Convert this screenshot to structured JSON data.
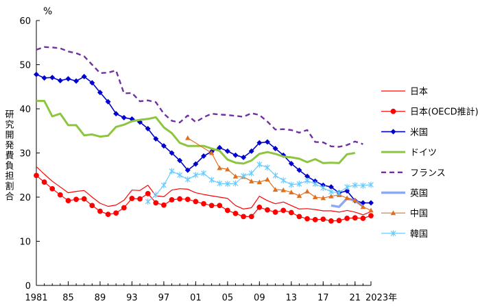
{
  "chart_data": {
    "type": "line",
    "unit": "%",
    "ylabel": "研究開発費負担割合",
    "ylim": [
      0,
      60
    ],
    "yticks": [
      0,
      10,
      20,
      30,
      40,
      50,
      60
    ],
    "xlim": [
      1981,
      2023
    ],
    "xticks": [
      {
        "year": 1981,
        "label": "1981"
      },
      {
        "year": 1985,
        "label": "85"
      },
      {
        "year": 1989,
        "label": "89"
      },
      {
        "year": 1993,
        "label": "93"
      },
      {
        "year": 1997,
        "label": "97"
      },
      {
        "year": 2001,
        "label": "01"
      },
      {
        "year": 2005,
        "label": "05"
      },
      {
        "year": 2009,
        "label": "09"
      },
      {
        "year": 2013,
        "label": "13"
      },
      {
        "year": 2017,
        "label": "17"
      },
      {
        "year": 2021,
        "label": "21"
      },
      {
        "year": 2023,
        "label": "2023年"
      }
    ],
    "grid": false,
    "legend_position": "right",
    "series": [
      {
        "name": "日本",
        "color": "#ff0000",
        "width": 1.2,
        "dash": "",
        "marker": "none",
        "points": [
          [
            1981,
            26.9
          ],
          [
            1982,
            25.2
          ],
          [
            1983,
            23.6
          ],
          [
            1984,
            22.3
          ],
          [
            1985,
            21.0
          ],
          [
            1986,
            21.3
          ],
          [
            1987,
            21.5
          ],
          [
            1988,
            20.0
          ],
          [
            1989,
            18.6
          ],
          [
            1990,
            17.9
          ],
          [
            1991,
            18.2
          ],
          [
            1992,
            19.3
          ],
          [
            1993,
            21.6
          ],
          [
            1994,
            21.5
          ],
          [
            1995,
            22.7
          ],
          [
            1996,
            20.3
          ],
          [
            1997,
            20.1
          ],
          [
            1998,
            21.6
          ],
          [
            1999,
            21.9
          ],
          [
            2000,
            21.8
          ],
          [
            2001,
            21.0
          ],
          [
            2002,
            20.6
          ],
          [
            2003,
            20.3
          ],
          [
            2004,
            20.0
          ],
          [
            2005,
            19.7
          ],
          [
            2006,
            18.1
          ],
          [
            2007,
            17.3
          ],
          [
            2008,
            17.6
          ],
          [
            2009,
            20.2
          ],
          [
            2010,
            19.2
          ],
          [
            2011,
            18.5
          ],
          [
            2012,
            18.9
          ],
          [
            2013,
            18.1
          ],
          [
            2014,
            17.3
          ],
          [
            2015,
            17.4
          ],
          [
            2016,
            17.2
          ],
          [
            2017,
            16.9
          ],
          [
            2018,
            16.9
          ],
          [
            2019,
            16.6
          ],
          [
            2020,
            17.0
          ],
          [
            2021,
            16.6
          ],
          [
            2022,
            16.0
          ],
          [
            2023,
            16.7
          ]
        ]
      },
      {
        "name": "日本(OECD推計)",
        "color": "#ff0000",
        "width": 1.2,
        "dash": "",
        "marker": "circle",
        "points": [
          [
            1981,
            24.9
          ],
          [
            1982,
            23.4
          ],
          [
            1983,
            21.9
          ],
          [
            1984,
            20.5
          ],
          [
            1985,
            19.2
          ],
          [
            1986,
            19.5
          ],
          [
            1987,
            19.6
          ],
          [
            1988,
            18.1
          ],
          [
            1989,
            16.8
          ],
          [
            1990,
            16.1
          ],
          [
            1991,
            16.4
          ],
          [
            1992,
            17.6
          ],
          [
            1993,
            19.7
          ],
          [
            1994,
            19.6
          ],
          [
            1995,
            20.8
          ],
          [
            1996,
            18.7
          ],
          [
            1997,
            18.2
          ],
          [
            1998,
            19.4
          ],
          [
            1999,
            19.6
          ],
          [
            2000,
            19.5
          ],
          [
            2001,
            19.0
          ],
          [
            2002,
            18.5
          ],
          [
            2003,
            18.1
          ],
          [
            2004,
            18.1
          ],
          [
            2005,
            17.0
          ],
          [
            2006,
            16.3
          ],
          [
            2007,
            15.6
          ],
          [
            2008,
            15.6
          ],
          [
            2009,
            17.7
          ],
          [
            2010,
            17.1
          ],
          [
            2011,
            16.6
          ],
          [
            2012,
            17.0
          ],
          [
            2013,
            16.5
          ],
          [
            2014,
            15.6
          ],
          [
            2015,
            15.1
          ],
          [
            2016,
            14.9
          ],
          [
            2017,
            15.0
          ],
          [
            2018,
            14.6
          ],
          [
            2019,
            14.7
          ],
          [
            2020,
            15.2
          ],
          [
            2021,
            15.3
          ],
          [
            2022,
            15.2
          ],
          [
            2023,
            15.8
          ]
        ]
      },
      {
        "name": "米国",
        "color": "#0000cc",
        "width": 1.6,
        "dash": "",
        "marker": "diamond",
        "points": [
          [
            1981,
            47.8
          ],
          [
            1982,
            47.0
          ],
          [
            1983,
            47.1
          ],
          [
            1984,
            46.4
          ],
          [
            1985,
            46.8
          ],
          [
            1986,
            46.3
          ],
          [
            1987,
            47.3
          ],
          [
            1988,
            45.9
          ],
          [
            1989,
            43.7
          ],
          [
            1990,
            41.6
          ],
          [
            1991,
            38.9
          ],
          [
            1992,
            38.0
          ],
          [
            1993,
            37.7
          ],
          [
            1994,
            37.0
          ],
          [
            1995,
            35.5
          ],
          [
            1996,
            33.2
          ],
          [
            1997,
            31.6
          ],
          [
            1998,
            30.0
          ],
          [
            1999,
            28.3
          ],
          [
            2000,
            26.1
          ],
          [
            2001,
            27.5
          ],
          [
            2002,
            29.3
          ],
          [
            2003,
            30.3
          ],
          [
            2004,
            31.2
          ],
          [
            2005,
            30.4
          ],
          [
            2006,
            29.5
          ],
          [
            2007,
            29.0
          ],
          [
            2008,
            30.4
          ],
          [
            2009,
            32.3
          ],
          [
            2010,
            32.5
          ],
          [
            2011,
            31.0
          ],
          [
            2012,
            29.5
          ],
          [
            2013,
            27.6
          ],
          [
            2014,
            26.1
          ],
          [
            2015,
            24.7
          ],
          [
            2016,
            23.6
          ],
          [
            2017,
            22.7
          ],
          [
            2018,
            22.3
          ],
          [
            2019,
            21.0
          ],
          [
            2020,
            21.4
          ],
          [
            2021,
            19.2
          ],
          [
            2022,
            18.7
          ],
          [
            2023,
            18.7
          ]
        ]
      },
      {
        "name": "ドイツ",
        "color": "#8cc63f",
        "width": 3,
        "dash": "",
        "marker": "none",
        "points": [
          [
            1981,
            41.8
          ],
          [
            1982,
            41.8
          ],
          [
            1983,
            38.3
          ],
          [
            1984,
            38.9
          ],
          [
            1985,
            36.3
          ],
          [
            1986,
            36.3
          ],
          [
            1987,
            34.0
          ],
          [
            1988,
            34.2
          ],
          [
            1989,
            33.7
          ],
          [
            1990,
            33.9
          ],
          [
            1991,
            35.9
          ],
          [
            1992,
            36.4
          ],
          [
            1993,
            37.2
          ],
          [
            1994,
            37.5
          ],
          [
            1995,
            37.7
          ],
          [
            1996,
            38.1
          ],
          [
            1997,
            35.8
          ],
          [
            1998,
            34.5
          ],
          [
            1999,
            32.3
          ],
          [
            2000,
            31.6
          ],
          [
            2001,
            31.6
          ],
          [
            2002,
            31.6
          ],
          [
            2003,
            31.0
          ],
          [
            2004,
            30.5
          ],
          [
            2005,
            28.5
          ],
          [
            2006,
            27.8
          ],
          [
            2007,
            27.6
          ],
          [
            2008,
            28.3
          ],
          [
            2009,
            29.8
          ],
          [
            2010,
            30.2
          ],
          [
            2011,
            29.8
          ],
          [
            2012,
            29.2
          ],
          [
            2013,
            29.0
          ],
          [
            2014,
            28.7
          ],
          [
            2015,
            27.9
          ],
          [
            2016,
            28.6
          ],
          [
            2017,
            27.7
          ],
          [
            2018,
            27.8
          ],
          [
            2019,
            27.7
          ],
          [
            2020,
            29.7
          ],
          [
            2021,
            30.0
          ]
        ]
      },
      {
        "name": "フランス",
        "color": "#7030a0",
        "width": 2.4,
        "dash": "7 5",
        "marker": "none",
        "points": [
          [
            1981,
            53.4
          ],
          [
            1982,
            54.0
          ],
          [
            1983,
            53.9
          ],
          [
            1984,
            53.7
          ],
          [
            1985,
            53.0
          ],
          [
            1986,
            52.6
          ],
          [
            1987,
            51.9
          ],
          [
            1988,
            50.0
          ],
          [
            1989,
            48.1
          ],
          [
            1990,
            48.2
          ],
          [
            1991,
            48.7
          ],
          [
            1992,
            43.5
          ],
          [
            1993,
            43.6
          ],
          [
            1994,
            41.7
          ],
          [
            1995,
            41.9
          ],
          [
            1996,
            41.5
          ],
          [
            1997,
            38.9
          ],
          [
            1998,
            37.3
          ],
          [
            1999,
            36.9
          ],
          [
            2000,
            38.5
          ],
          [
            2001,
            37.0
          ],
          [
            2002,
            38.1
          ],
          [
            2003,
            38.9
          ],
          [
            2004,
            38.7
          ],
          [
            2005,
            38.6
          ],
          [
            2006,
            38.4
          ],
          [
            2007,
            38.2
          ],
          [
            2008,
            39.0
          ],
          [
            2009,
            38.6
          ],
          [
            2010,
            37.1
          ],
          [
            2011,
            35.3
          ],
          [
            2012,
            35.4
          ],
          [
            2013,
            35.2
          ],
          [
            2014,
            34.6
          ],
          [
            2015,
            35.2
          ],
          [
            2016,
            32.5
          ],
          [
            2017,
            32.4
          ],
          [
            2018,
            31.5
          ],
          [
            2019,
            31.4
          ],
          [
            2020,
            31.8
          ],
          [
            2021,
            32.6
          ],
          [
            2022,
            32.0
          ]
        ]
      },
      {
        "name": "英国",
        "color": "#8ea9f0",
        "width": 3.5,
        "dash": "",
        "marker": "none",
        "points": [
          [
            2018,
            18.1
          ],
          [
            2019,
            17.8
          ],
          [
            2020,
            19.7
          ],
          [
            2021,
            19.2
          ],
          [
            2022,
            17.9
          ]
        ]
      },
      {
        "name": "中国",
        "color": "#e07020",
        "width": 1.2,
        "dash": "",
        "marker": "triangle",
        "points": [
          [
            2000,
            33.4
          ],
          [
            2003,
            30.0
          ],
          [
            2004,
            26.6
          ],
          [
            2005,
            26.3
          ],
          [
            2006,
            24.7
          ],
          [
            2007,
            24.6
          ],
          [
            2008,
            23.6
          ],
          [
            2009,
            23.4
          ],
          [
            2010,
            24.0
          ],
          [
            2011,
            21.7
          ],
          [
            2012,
            21.6
          ],
          [
            2013,
            21.1
          ],
          [
            2014,
            20.3
          ],
          [
            2015,
            21.3
          ],
          [
            2016,
            20.0
          ],
          [
            2017,
            19.8
          ],
          [
            2018,
            20.2
          ],
          [
            2019,
            20.5
          ],
          [
            2020,
            19.8
          ],
          [
            2021,
            19.3
          ],
          [
            2022,
            17.8
          ],
          [
            2023,
            17.0
          ]
        ]
      },
      {
        "name": "韓国",
        "color": "#66ccff",
        "width": 1.2,
        "dash": "",
        "marker": "star",
        "points": [
          [
            1995,
            19.0
          ],
          [
            1996,
            20.5
          ],
          [
            1997,
            22.7
          ],
          [
            1998,
            25.9
          ],
          [
            1999,
            25.0
          ],
          [
            2000,
            24.0
          ],
          [
            2001,
            25.0
          ],
          [
            2002,
            25.4
          ],
          [
            2003,
            23.9
          ],
          [
            2004,
            23.1
          ],
          [
            2005,
            23.0
          ],
          [
            2006,
            23.1
          ],
          [
            2007,
            24.8
          ],
          [
            2008,
            25.4
          ],
          [
            2009,
            27.4
          ],
          [
            2010,
            26.7
          ],
          [
            2011,
            24.9
          ],
          [
            2012,
            23.8
          ],
          [
            2013,
            22.8
          ],
          [
            2014,
            23.0
          ],
          [
            2015,
            23.7
          ],
          [
            2016,
            23.0
          ],
          [
            2017,
            22.1
          ],
          [
            2018,
            21.2
          ],
          [
            2019,
            21.0
          ],
          [
            2020,
            22.3
          ],
          [
            2021,
            22.7
          ],
          [
            2022,
            22.6
          ],
          [
            2023,
            22.8
          ]
        ]
      }
    ]
  }
}
